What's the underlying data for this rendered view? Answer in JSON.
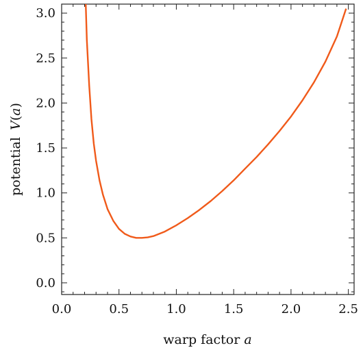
{
  "chart_data": {
    "type": "line",
    "title": "",
    "xlabel": "warp factor",
    "xlabel_var": "a",
    "ylabel": "potential",
    "ylabel_fn": "V",
    "ylabel_var": "a",
    "xlim": [
      0,
      2.55
    ],
    "ylim": [
      -0.13,
      3.1
    ],
    "x_ticks": [
      0.0,
      0.5,
      1.0,
      1.5,
      2.0,
      2.5
    ],
    "x_tick_labels": [
      "0.0",
      "0.5",
      "1.0",
      "1.5",
      "2.0",
      "2.5"
    ],
    "y_ticks": [
      0.0,
      0.5,
      1.0,
      1.5,
      2.0,
      2.5,
      3.0
    ],
    "y_tick_labels": [
      "0.0",
      "0.5",
      "1.0",
      "1.5",
      "2.0",
      "2.5",
      "3.0"
    ],
    "grid": false,
    "legend": "none",
    "line_color": "#f05a1a",
    "series": [
      {
        "x": [
          0.21,
          0.22,
          0.24,
          0.26,
          0.28,
          0.3,
          0.33,
          0.36,
          0.4,
          0.45,
          0.5,
          0.55,
          0.6,
          0.65,
          0.7,
          0.75,
          0.8,
          0.9,
          1.0,
          1.1,
          1.2,
          1.3,
          1.4,
          1.5,
          1.6,
          1.7,
          1.8,
          1.9,
          2.0,
          2.1,
          2.2,
          2.3,
          2.4,
          2.48
        ],
        "y": [
          3.1,
          2.7,
          2.2,
          1.82,
          1.55,
          1.36,
          1.14,
          0.98,
          0.82,
          0.69,
          0.6,
          0.545,
          0.515,
          0.5,
          0.5,
          0.505,
          0.52,
          0.57,
          0.64,
          0.72,
          0.81,
          0.91,
          1.02,
          1.14,
          1.27,
          1.4,
          1.54,
          1.69,
          1.85,
          2.03,
          2.23,
          2.46,
          2.74,
          3.05
        ]
      }
    ]
  }
}
